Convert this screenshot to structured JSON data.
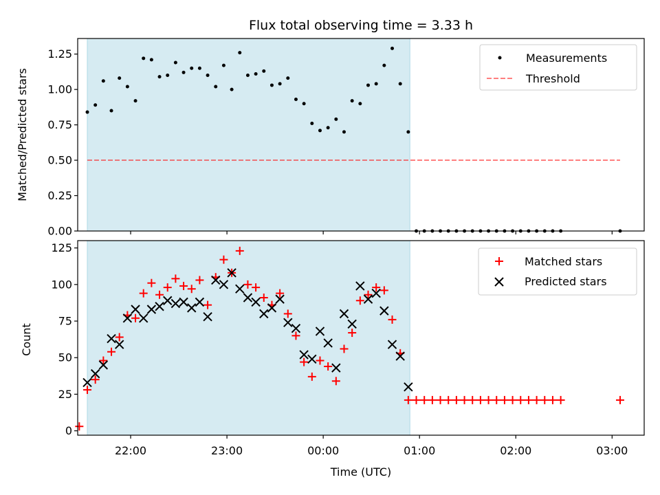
{
  "title": "Flux total observing time = 3.33 h",
  "colors": {
    "shade": "#add8e6",
    "threshold": "#ff0000",
    "matched": "#ff0000",
    "predicted": "#000000",
    "measurement": "#000000"
  },
  "chart_data": [
    {
      "type": "scatter",
      "ylabel": "Matched/Predicted stars",
      "ylim": [
        0,
        1.36
      ],
      "yticks": [
        0,
        0.25,
        0.5,
        0.75,
        1.0,
        1.25
      ],
      "ytick_labels": [
        "0.00",
        "0.25",
        "0.50",
        "0.75",
        "1.00",
        "1.25"
      ],
      "xlim": [
        "21:27",
        "03:20"
      ],
      "shaded_interval": [
        "21:33",
        "00:54"
      ],
      "legend": {
        "position": "top-right",
        "entries": [
          "Measurements",
          "Threshold"
        ]
      },
      "threshold": {
        "name": "Threshold",
        "value": 0.5,
        "x_range": [
          "21:33",
          "03:05"
        ],
        "style": "dashed"
      },
      "series": [
        {
          "name": "Measurements",
          "x": [
            "21:33",
            "21:38",
            "21:43",
            "21:48",
            "21:53",
            "21:58",
            "22:03",
            "22:08",
            "22:13",
            "22:18",
            "22:23",
            "22:28",
            "22:33",
            "22:38",
            "22:43",
            "22:48",
            "22:53",
            "22:58",
            "23:03",
            "23:08",
            "23:13",
            "23:18",
            "23:23",
            "23:28",
            "23:33",
            "23:38",
            "23:43",
            "23:48",
            "23:53",
            "23:58",
            "00:03",
            "00:08",
            "00:13",
            "00:18",
            "00:23",
            "00:28",
            "00:33",
            "00:38",
            "00:43",
            "00:48",
            "00:53",
            "00:58",
            "01:03",
            "01:08",
            "01:13",
            "01:18",
            "01:23",
            "01:28",
            "01:33",
            "01:38",
            "01:43",
            "01:48",
            "01:53",
            "01:58",
            "02:03",
            "02:08",
            "02:13",
            "02:18",
            "02:23",
            "02:28",
            "03:05"
          ],
          "y": [
            0.84,
            0.89,
            1.06,
            0.85,
            1.08,
            1.02,
            0.92,
            1.22,
            1.21,
            1.09,
            1.1,
            1.19,
            1.12,
            1.15,
            1.15,
            1.1,
            1.02,
            1.17,
            1.0,
            1.26,
            1.1,
            1.11,
            1.13,
            1.03,
            1.04,
            1.08,
            0.93,
            0.9,
            0.76,
            0.71,
            0.73,
            0.79,
            0.7,
            0.92,
            0.9,
            1.03,
            1.04,
            1.17,
            1.29,
            1.04,
            0.7,
            0,
            0,
            0,
            0,
            0,
            0,
            0,
            0,
            0,
            0,
            0,
            0,
            0,
            0,
            0,
            0,
            0,
            0,
            0,
            0
          ]
        }
      ]
    },
    {
      "type": "scatter",
      "xlabel": "Time (UTC)",
      "ylabel": "Count",
      "ylim": [
        -3,
        130
      ],
      "yticks": [
        0,
        25,
        50,
        75,
        100,
        125
      ],
      "ytick_labels": [
        "0",
        "25",
        "50",
        "75",
        "100",
        "125"
      ],
      "xticks": [
        "22:00",
        "23:00",
        "00:00",
        "01:00",
        "02:00",
        "03:00"
      ],
      "xlim": [
        "21:27",
        "03:20"
      ],
      "shaded_interval": [
        "21:33",
        "00:54"
      ],
      "legend": {
        "position": "top-right",
        "entries": [
          "Matched stars",
          "Predicted stars"
        ]
      },
      "series": [
        {
          "name": "Matched stars",
          "marker": "plus",
          "x": [
            "21:28",
            "21:33",
            "21:38",
            "21:43",
            "21:48",
            "21:53",
            "21:58",
            "22:03",
            "22:08",
            "22:13",
            "22:18",
            "22:23",
            "22:28",
            "22:33",
            "22:38",
            "22:43",
            "22:48",
            "22:53",
            "22:58",
            "23:03",
            "23:08",
            "23:13",
            "23:18",
            "23:23",
            "23:28",
            "23:33",
            "23:38",
            "23:43",
            "23:48",
            "23:53",
            "23:58",
            "00:03",
            "00:08",
            "00:13",
            "00:18",
            "00:23",
            "00:28",
            "00:33",
            "00:38",
            "00:43",
            "00:48",
            "00:53",
            "00:58",
            "01:03",
            "01:08",
            "01:13",
            "01:18",
            "01:23",
            "01:28",
            "01:33",
            "01:38",
            "01:43",
            "01:48",
            "01:53",
            "01:58",
            "02:03",
            "02:08",
            "02:13",
            "02:18",
            "02:23",
            "02:28",
            "03:05"
          ],
          "y": [
            3,
            28,
            35,
            48,
            54,
            64,
            79,
            77,
            94,
            101,
            93,
            98,
            104,
            99,
            97,
            103,
            86,
            105,
            117,
            108,
            123,
            100,
            98,
            91,
            86,
            94,
            80,
            65,
            47,
            37,
            48,
            44,
            34,
            56,
            67,
            89,
            93,
            98,
            96,
            76,
            53,
            21,
            21,
            21,
            21,
            21,
            21,
            21,
            21,
            21,
            21,
            21,
            21,
            21,
            21,
            21,
            21,
            21,
            21,
            21,
            21,
            21
          ]
        },
        {
          "name": "Predicted stars",
          "marker": "x",
          "x": [
            "21:33",
            "21:38",
            "21:43",
            "21:48",
            "21:53",
            "21:58",
            "22:03",
            "22:08",
            "22:13",
            "22:18",
            "22:23",
            "22:28",
            "22:33",
            "22:38",
            "22:43",
            "22:48",
            "22:53",
            "22:58",
            "23:03",
            "23:08",
            "23:13",
            "23:18",
            "23:23",
            "23:28",
            "23:33",
            "23:38",
            "23:43",
            "23:48",
            "23:53",
            "23:58",
            "00:03",
            "00:08",
            "00:13",
            "00:18",
            "00:23",
            "00:28",
            "00:33",
            "00:38",
            "00:43",
            "00:48",
            "00:53"
          ],
          "y": [
            33,
            39,
            45,
            63,
            59,
            77,
            83,
            77,
            83,
            85,
            89,
            87,
            88,
            84,
            88,
            78,
            103,
            100,
            108,
            97,
            91,
            88,
            80,
            84,
            90,
            74,
            70,
            52,
            49,
            68,
            60,
            43,
            80,
            73,
            99,
            90,
            94,
            82,
            59,
            51,
            30
          ]
        }
      ]
    }
  ]
}
